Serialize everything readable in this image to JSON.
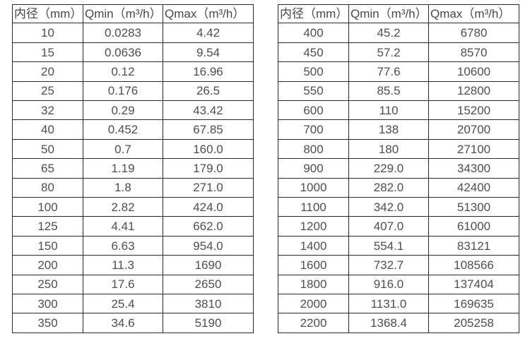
{
  "page": {
    "background": "#ffffff",
    "border_color": "#2a2a2a",
    "text_color": "#4f4f4f"
  },
  "tables": [
    {
      "name": "small-diameter-flow-table",
      "headers": [
        "内径（mm）",
        "Qmin（m³/h）",
        "Qmax（m³/h）"
      ],
      "rows": [
        [
          "10",
          "0.0283",
          "4.42"
        ],
        [
          "15",
          "0.0636",
          "9.54"
        ],
        [
          "20",
          "0.12",
          "16.96"
        ],
        [
          "25",
          "0.176",
          "26.5"
        ],
        [
          "32",
          "0.29",
          "43.42"
        ],
        [
          "40",
          "0.452",
          "67.85"
        ],
        [
          "50",
          "0.7",
          "160.0"
        ],
        [
          "65",
          "1.19",
          "179.0"
        ],
        [
          "80",
          "1.8",
          "271.0"
        ],
        [
          "100",
          "2.82",
          "424.0"
        ],
        [
          "125",
          "4.41",
          "662.0"
        ],
        [
          "150",
          "6.63",
          "954.0"
        ],
        [
          "200",
          "11.3",
          "1690"
        ],
        [
          "250",
          "17.6",
          "2650"
        ],
        [
          "300",
          "25.4",
          "3810"
        ],
        [
          "350",
          "34.6",
          "5190"
        ]
      ]
    },
    {
      "name": "large-diameter-flow-table",
      "headers": [
        "内径（mm）",
        "Qmin（m³/h）",
        "Qmax（m³/h）"
      ],
      "rows": [
        [
          "400",
          "45.2",
          "6780"
        ],
        [
          "450",
          "57.2",
          "8570"
        ],
        [
          "500",
          "77.6",
          "10600"
        ],
        [
          "550",
          "85.5",
          "12800"
        ],
        [
          "600",
          "110",
          "15200"
        ],
        [
          "700",
          "138",
          "20700"
        ],
        [
          "800",
          "180",
          "27100"
        ],
        [
          "900",
          "229.0",
          "34300"
        ],
        [
          "1000",
          "282.0",
          "42400"
        ],
        [
          "1100",
          "342.0",
          "51300"
        ],
        [
          "1200",
          "407.0",
          "61000"
        ],
        [
          "1400",
          "554.1",
          "83121"
        ],
        [
          "1600",
          "732.7",
          "108566"
        ],
        [
          "1800",
          "916.0",
          "137404"
        ],
        [
          "2000",
          "1131.0",
          "169635"
        ],
        [
          "2200",
          "1368.4",
          "205258"
        ]
      ]
    }
  ]
}
